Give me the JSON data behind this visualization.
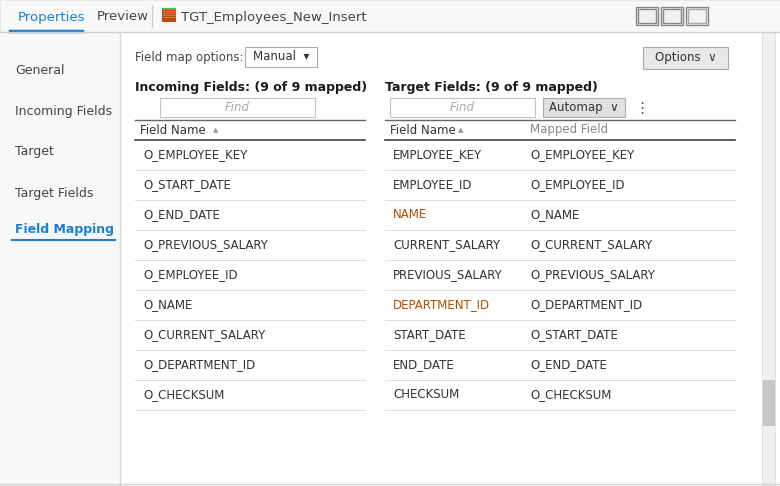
{
  "title_tab_properties": "Properties",
  "title_tab_preview": "Preview",
  "title_tab_icon": "TGT_Employees_New_Insert",
  "bg_color": "#ffffff",
  "nav_bg": "#f8f8f8",
  "field_map_label": "Field map options:",
  "dropdown_manual": "Manual",
  "options_btn": "Options  ∨",
  "incoming_header": "Incoming Fields: (9 of 9 mapped)",
  "target_header": "Target Fields: (9 of 9 mapped)",
  "find_placeholder": "Find",
  "automap_btn": "Automap  ∨",
  "col_header_field": "Field Name",
  "col_header_mapped": "Mapped Field",
  "nav_items": [
    "General",
    "Incoming Fields",
    "Target",
    "Target Fields",
    "Field Mapping"
  ],
  "active_nav": "Field Mapping",
  "incoming_fields": [
    "O_EMPLOYEE_KEY",
    "O_START_DATE",
    "O_END_DATE",
    "O_PREVIOUS_SALARY",
    "O_EMPLOYEE_ID",
    "O_NAME",
    "O_CURRENT_SALARY",
    "O_DEPARTMENT_ID",
    "O_CHECKSUM"
  ],
  "target_fields": [
    "EMPLOYEE_KEY",
    "EMPLOYEE_ID",
    "NAME",
    "CURRENT_SALARY",
    "PREVIOUS_SALARY",
    "DEPARTMENT_ID",
    "START_DATE",
    "END_DATE",
    "CHECKSUM"
  ],
  "mapped_fields": [
    "O_EMPLOYEE_KEY",
    "O_EMPLOYEE_ID",
    "O_NAME",
    "O_CURRENT_SALARY",
    "O_PREVIOUS_SALARY",
    "O_DEPARTMENT_ID",
    "O_START_DATE",
    "O_END_DATE",
    "O_CHECKSUM"
  ],
  "target_fields_colored": [
    false,
    false,
    true,
    false,
    false,
    true,
    false,
    false,
    false
  ],
  "accent_blue": "#1a7fd4",
  "text_dark": "#2c2c2c",
  "text_nav": "#444444",
  "text_orange": "#c06000",
  "tab_text_active": "#1a7fd4",
  "tab_text_inactive": "#444444",
  "btn_bg": "#e8e8e8",
  "btn_border": "#aaaaaa",
  "find_bg": "#ffffff",
  "find_border": "#c0c0c0",
  "row_sep": "#dddddd",
  "col_header_line": "#555555",
  "mapped_field_color": "#888888",
  "nav_divider": "#d8d8d8"
}
